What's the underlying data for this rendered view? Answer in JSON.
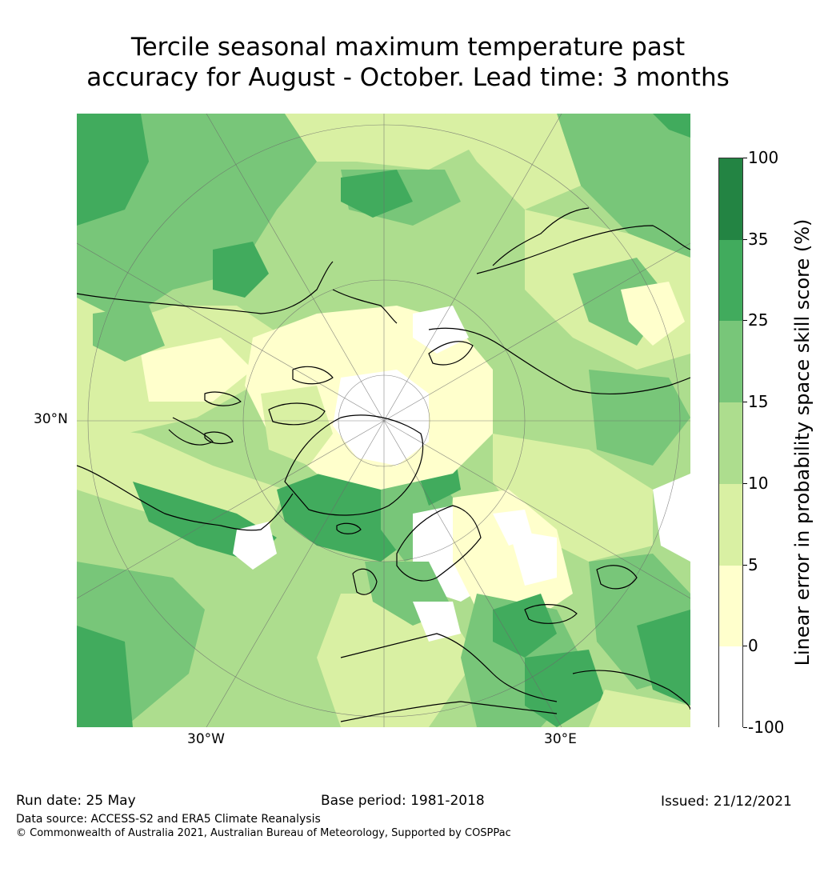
{
  "title": {
    "line1": "Tercile seasonal maximum temperature past",
    "line2": "accuracy for August - October. Lead time: 3 months"
  },
  "map": {
    "graticule_labels": {
      "left": "30°N",
      "bottom_left": "30°W",
      "bottom_right": "30°E"
    }
  },
  "colorbar": {
    "label": "Linear error in probability space skill score (%)",
    "ticks": [
      "100",
      "35",
      "25",
      "15",
      "10",
      "5",
      "0",
      "-100"
    ],
    "levels": [
      {
        "from": 35,
        "to": 100,
        "color": "#238443"
      },
      {
        "from": 25,
        "to": 35,
        "color": "#41ab5d"
      },
      {
        "from": 15,
        "to": 25,
        "color": "#78c679"
      },
      {
        "from": 10,
        "to": 15,
        "color": "#addd8e"
      },
      {
        "from": 5,
        "to": 10,
        "color": "#d9f0a3"
      },
      {
        "from": 0,
        "to": 5,
        "color": "#ffffcc"
      },
      {
        "from": -100,
        "to": 0,
        "color": "#ffffff"
      }
    ]
  },
  "footer": {
    "run_date": "Run date: 25 May",
    "base_period": "Base period: 1981-2018",
    "issued": "Issued: 21/12/2021",
    "data_source": "Data source: ACCESS-S2 and ERA5 Climate Reanalysis",
    "copyright": "© Commonwealth of Australia 2021, Australian Bureau of Meteorology, Supported by COSPPac"
  }
}
